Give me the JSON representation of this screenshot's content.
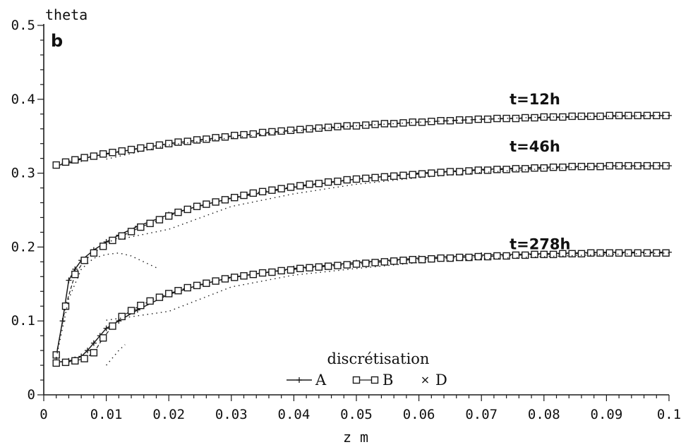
{
  "chart_data": {
    "type": "line",
    "title": "",
    "panel_label": "b",
    "ylabel": "theta",
    "xlabel": "z m",
    "xlim": [
      0,
      0.1
    ],
    "ylim": [
      0,
      0.5
    ],
    "x_ticks": [
      0,
      0.01,
      0.02,
      0.03,
      0.04,
      0.05,
      0.06,
      0.07,
      0.08,
      0.09,
      0.1
    ],
    "x_tick_labels": [
      "0",
      "0.01",
      "0.02",
      "0.03",
      "0.04",
      "0.05",
      "0.06",
      "0.07",
      "0.08",
      "0.09",
      "0.1"
    ],
    "y_ticks": [
      0,
      0.1,
      0.2,
      0.3,
      0.4,
      0.5
    ],
    "y_tick_labels": [
      "0",
      "0.1",
      "0.2",
      "0.3",
      "0.4",
      "0.5"
    ],
    "grid": false,
    "legend": {
      "title": "discrétisation",
      "placement": "bottom-center",
      "entries": [
        {
          "label": "A",
          "marker": "plus-line"
        },
        {
          "label": "B",
          "marker": "square-line"
        },
        {
          "label": "D",
          "marker": "cross"
        }
      ]
    },
    "curves": [
      {
        "label": "t=12h",
        "label_at": [
          0.0745,
          0.393
        ],
        "series": [
          {
            "name": "A",
            "x": [
              0.002,
              0.004,
              0.006,
              0.008,
              0.01,
              0.015,
              0.02,
              0.03,
              0.04,
              0.05,
              0.06,
              0.07,
              0.08,
              0.09,
              0.1
            ],
            "y": [
              0.31,
              0.314,
              0.319,
              0.323,
              0.326,
              0.333,
              0.34,
              0.35,
              0.358,
              0.364,
              0.369,
              0.373,
              0.375,
              0.377,
              0.378
            ]
          },
          {
            "name": "B",
            "x": [
              0.002,
              0.0035,
              0.005,
              0.0065,
              0.008,
              0.0095,
              0.011,
              0.0125,
              0.014,
              0.0155,
              0.017,
              0.0185,
              0.02,
              0.0215,
              0.023,
              0.0245,
              0.026,
              0.0275,
              0.029,
              0.0305,
              0.032,
              0.0335,
              0.035,
              0.0365,
              0.038,
              0.0395,
              0.041,
              0.0425,
              0.044,
              0.0455,
              0.047,
              0.0485,
              0.05,
              0.0515,
              0.053,
              0.0545,
              0.056,
              0.0575,
              0.059,
              0.0605,
              0.062,
              0.0635,
              0.065,
              0.0665,
              0.068,
              0.0695,
              0.071,
              0.0725,
              0.074,
              0.0755,
              0.077,
              0.0785,
              0.08,
              0.0815,
              0.083,
              0.0845,
              0.086,
              0.0875,
              0.089,
              0.0905,
              0.092,
              0.0935,
              0.095,
              0.0965,
              0.098,
              0.0995
            ],
            "y": [
              0.311,
              0.315,
              0.318,
              0.321,
              0.323,
              0.326,
              0.328,
              0.33,
              0.332,
              0.334,
              0.336,
              0.338,
              0.34,
              0.342,
              0.343,
              0.345,
              0.346,
              0.348,
              0.349,
              0.351,
              0.352,
              0.353,
              0.355,
              0.356,
              0.357,
              0.358,
              0.359,
              0.36,
              0.361,
              0.362,
              0.363,
              0.364,
              0.364,
              0.365,
              0.366,
              0.367,
              0.367,
              0.368,
              0.369,
              0.369,
              0.37,
              0.371,
              0.371,
              0.372,
              0.372,
              0.373,
              0.373,
              0.374,
              0.374,
              0.374,
              0.375,
              0.375,
              0.376,
              0.376,
              0.376,
              0.377,
              0.377,
              0.377,
              0.377,
              0.378,
              0.378,
              0.378,
              0.378,
              0.378,
              0.378,
              0.378
            ]
          },
          {
            "name": "D",
            "x": [
              0.01,
              0.02,
              0.03,
              0.04,
              0.05,
              0.06,
              0.07,
              0.08,
              0.09,
              0.1
            ],
            "y": [
              0.319,
              0.338,
              0.348,
              0.357,
              0.364,
              0.369,
              0.373,
              0.376,
              0.377,
              0.378
            ]
          }
        ]
      },
      {
        "label": "t=46h",
        "label_at": [
          0.0745,
          0.329
        ],
        "series": [
          {
            "name": "A",
            "x": [
              0.002,
              0.003,
              0.004,
              0.005,
              0.006,
              0.008,
              0.01,
              0.012,
              0.015,
              0.02,
              0.025,
              0.03,
              0.04,
              0.05,
              0.06,
              0.07,
              0.08,
              0.09,
              0.1
            ],
            "y": [
              0.052,
              0.1,
              0.155,
              0.17,
              0.182,
              0.196,
              0.207,
              0.216,
              0.228,
              0.244,
              0.256,
              0.266,
              0.281,
              0.292,
              0.3,
              0.305,
              0.308,
              0.31,
              0.31
            ]
          },
          {
            "name": "B",
            "x": [
              0.002,
              0.0035,
              0.005,
              0.0065,
              0.008,
              0.0095,
              0.011,
              0.0125,
              0.014,
              0.0155,
              0.017,
              0.0185,
              0.02,
              0.0215,
              0.023,
              0.0245,
              0.026,
              0.0275,
              0.029,
              0.0305,
              0.032,
              0.0335,
              0.035,
              0.0365,
              0.038,
              0.0395,
              0.041,
              0.0425,
              0.044,
              0.0455,
              0.047,
              0.0485,
              0.05,
              0.0515,
              0.053,
              0.0545,
              0.056,
              0.0575,
              0.059,
              0.0605,
              0.062,
              0.0635,
              0.065,
              0.0665,
              0.068,
              0.0695,
              0.071,
              0.0725,
              0.074,
              0.0755,
              0.077,
              0.0785,
              0.08,
              0.0815,
              0.083,
              0.0845,
              0.086,
              0.0875,
              0.089,
              0.0905,
              0.092,
              0.0935,
              0.095,
              0.0965,
              0.098,
              0.0995
            ],
            "y": [
              0.054,
              0.12,
              0.163,
              0.182,
              0.192,
              0.201,
              0.209,
              0.215,
              0.221,
              0.227,
              0.232,
              0.237,
              0.242,
              0.247,
              0.251,
              0.255,
              0.258,
              0.261,
              0.264,
              0.267,
              0.27,
              0.273,
              0.275,
              0.277,
              0.279,
              0.281,
              0.283,
              0.285,
              0.286,
              0.288,
              0.289,
              0.291,
              0.292,
              0.293,
              0.294,
              0.295,
              0.296,
              0.297,
              0.298,
              0.299,
              0.3,
              0.301,
              0.302,
              0.302,
              0.303,
              0.304,
              0.304,
              0.305,
              0.305,
              0.306,
              0.306,
              0.307,
              0.307,
              0.308,
              0.308,
              0.309,
              0.309,
              0.309,
              0.309,
              0.31,
              0.31,
              0.31,
              0.31,
              0.31,
              0.31,
              0.31
            ]
          },
          {
            "name": "D",
            "x": [
              0.01,
              0.02,
              0.03,
              0.04,
              0.05,
              0.06,
              0.07,
              0.08,
              0.09,
              0.1
            ],
            "y": [
              0.207,
              0.224,
              0.255,
              0.272,
              0.285,
              0.294,
              0.301,
              0.306,
              0.309,
              0.31
            ]
          },
          {
            "name": "D",
            "x": [
              0.002,
              0.004,
              0.006,
              0.008,
              0.01,
              0.012,
              0.014,
              0.016,
              0.018
            ],
            "y": [
              0.05,
              0.13,
              0.17,
              0.185,
              0.19,
              0.192,
              0.188,
              0.18,
              0.172
            ]
          }
        ]
      },
      {
        "label": "t=278h",
        "label_at": [
          0.0745,
          0.197
        ],
        "series": [
          {
            "name": "A",
            "x": [
              0.002,
              0.004,
              0.005,
              0.006,
              0.007,
              0.008,
              0.009,
              0.01,
              0.012,
              0.015,
              0.02,
              0.025,
              0.03,
              0.04,
              0.05,
              0.06,
              0.07,
              0.08,
              0.09,
              0.1
            ],
            "y": [
              0.044,
              0.046,
              0.048,
              0.052,
              0.06,
              0.07,
              0.08,
              0.09,
              0.1,
              0.115,
              0.136,
              0.149,
              0.159,
              0.171,
              0.179,
              0.185,
              0.189,
              0.191,
              0.193,
              0.193
            ]
          },
          {
            "name": "B",
            "x": [
              0.002,
              0.0035,
              0.005,
              0.0065,
              0.008,
              0.0095,
              0.011,
              0.0125,
              0.014,
              0.0155,
              0.017,
              0.0185,
              0.02,
              0.0215,
              0.023,
              0.0245,
              0.026,
              0.0275,
              0.029,
              0.0305,
              0.032,
              0.0335,
              0.035,
              0.0365,
              0.038,
              0.0395,
              0.041,
              0.0425,
              0.044,
              0.0455,
              0.047,
              0.0485,
              0.05,
              0.0515,
              0.053,
              0.0545,
              0.056,
              0.0575,
              0.059,
              0.0605,
              0.062,
              0.0635,
              0.065,
              0.0665,
              0.068,
              0.0695,
              0.071,
              0.0725,
              0.074,
              0.0755,
              0.077,
              0.0785,
              0.08,
              0.0815,
              0.083,
              0.0845,
              0.086,
              0.0875,
              0.089,
              0.0905,
              0.092,
              0.0935,
              0.095,
              0.0965,
              0.098,
              0.0995
            ],
            "y": [
              0.043,
              0.044,
              0.046,
              0.049,
              0.057,
              0.077,
              0.093,
              0.106,
              0.114,
              0.121,
              0.127,
              0.132,
              0.137,
              0.141,
              0.145,
              0.148,
              0.151,
              0.154,
              0.157,
              0.159,
              0.161,
              0.163,
              0.165,
              0.166,
              0.168,
              0.169,
              0.171,
              0.172,
              0.173,
              0.174,
              0.175,
              0.176,
              0.177,
              0.178,
              0.179,
              0.18,
              0.181,
              0.182,
              0.183,
              0.183,
              0.184,
              0.185,
              0.185,
              0.186,
              0.186,
              0.187,
              0.187,
              0.188,
              0.188,
              0.189,
              0.189,
              0.19,
              0.19,
              0.19,
              0.191,
              0.191,
              0.191,
              0.192,
              0.192,
              0.192,
              0.192,
              0.192,
              0.192,
              0.192,
              0.192,
              0.192
            ]
          },
          {
            "name": "D",
            "x": [
              0.01,
              0.02,
              0.03,
              0.04,
              0.05,
              0.06,
              0.07,
              0.08,
              0.09,
              0.1
            ],
            "y": [
              0.101,
              0.113,
              0.146,
              0.162,
              0.171,
              0.179,
              0.184,
              0.187,
              0.19,
              0.192
            ]
          },
          {
            "name": "D",
            "x": [
              0.01,
              0.011,
              0.012,
              0.013
            ],
            "y": [
              0.04,
              0.05,
              0.06,
              0.068
            ]
          }
        ]
      }
    ]
  }
}
